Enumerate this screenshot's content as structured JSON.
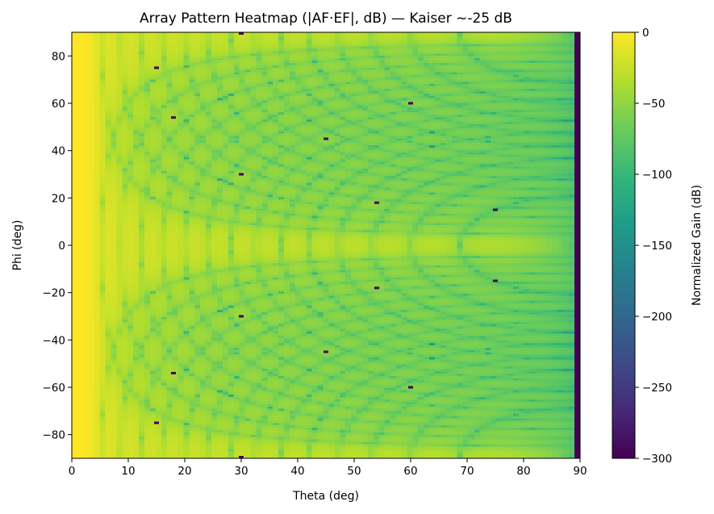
{
  "chart_data": {
    "type": "heatmap",
    "title": "Array Pattern Heatmap (|AF·EF|, dB) — Kaiser ~-25 dB",
    "xlabel": "Theta (deg)",
    "ylabel": "Phi (deg)",
    "xlim": [
      0,
      90
    ],
    "ylim": [
      -90,
      90
    ],
    "xticks": [
      "0",
      "10",
      "20",
      "30",
      "40",
      "50",
      "60",
      "70",
      "80",
      "90"
    ],
    "yticks": [
      "80",
      "60",
      "40",
      "20",
      "0",
      "−20",
      "−40",
      "−60",
      "−80"
    ],
    "grid": false,
    "colormap": "viridis",
    "colorbar": {
      "label": "Normalized Gain (dB)",
      "range": [
        -300,
        0
      ],
      "ticks": [
        "0",
        "−50",
        "−100",
        "−150",
        "−200",
        "−250",
        "−300"
      ]
    },
    "deep_nulls_value": -300,
    "deep_nulls": [
      {
        "theta": 15,
        "phi": 75
      },
      {
        "theta": 18,
        "phi": 54
      },
      {
        "theta": 30,
        "phi": 90
      },
      {
        "theta": 30,
        "phi": 30
      },
      {
        "theta": 45,
        "phi": 45
      },
      {
        "theta": 54,
        "phi": 18
      },
      {
        "theta": 60,
        "phi": 60
      },
      {
        "theta": 75,
        "phi": 15
      },
      {
        "theta": 15,
        "phi": -75
      },
      {
        "theta": 18,
        "phi": -54
      },
      {
        "theta": 30,
        "phi": -90
      },
      {
        "theta": 30,
        "phi": -30
      },
      {
        "theta": 45,
        "phi": -45
      },
      {
        "theta": 54,
        "phi": -18
      },
      {
        "theta": 60,
        "phi": -60
      },
      {
        "theta": 75,
        "phi": -15
      }
    ],
    "edge_column": {
      "theta": 90,
      "value": -300
    }
  }
}
